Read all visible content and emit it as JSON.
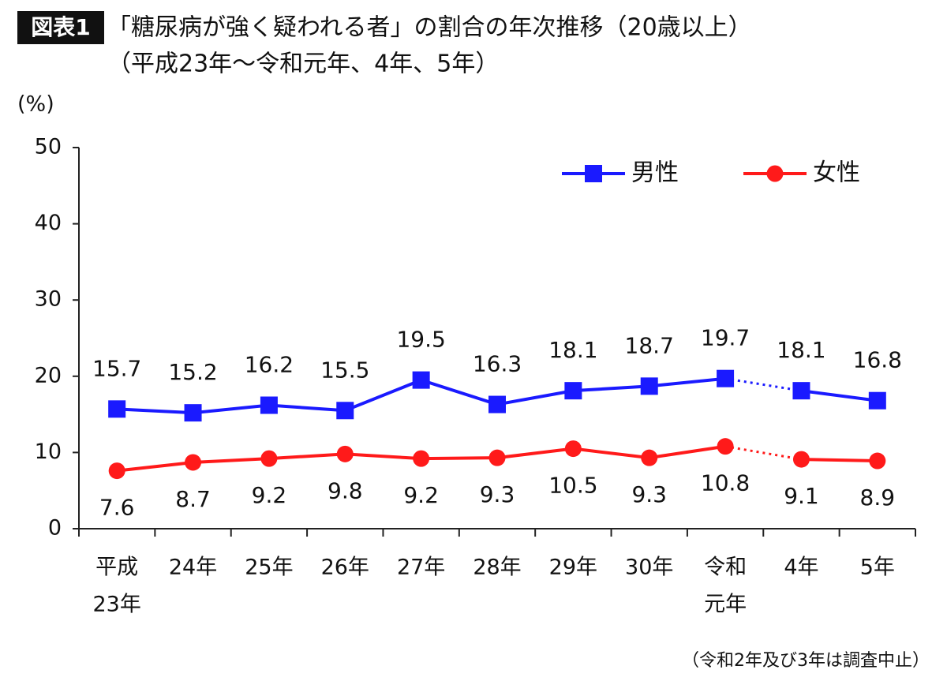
{
  "chart_data": {
    "type": "line",
    "badge": "図表1",
    "title": "「糖尿病が強く疑われる者」の割合の年次推移（20歳以上）",
    "subtitle": "（平成23年～令和元年、4年、5年）",
    "y_label": "(%)",
    "note": "（令和2年及び3年は調査中止）",
    "categories": [
      [
        "平成",
        "23年"
      ],
      [
        "24年"
      ],
      [
        "25年"
      ],
      [
        "26年"
      ],
      [
        "27年"
      ],
      [
        "28年"
      ],
      [
        "29年"
      ],
      [
        "30年"
      ],
      [
        "令和",
        "元年"
      ],
      [
        "4年"
      ],
      [
        "5年"
      ]
    ],
    "series": [
      {
        "name": "男性",
        "color": "#1a1aff",
        "marker": "square",
        "values": [
          15.7,
          15.2,
          16.2,
          15.5,
          19.5,
          16.3,
          18.1,
          18.7,
          19.7,
          18.1,
          16.8
        ]
      },
      {
        "name": "女性",
        "color": "#ff1a1a",
        "marker": "circle",
        "values": [
          7.6,
          8.7,
          9.2,
          9.8,
          9.2,
          9.3,
          10.5,
          9.3,
          10.8,
          9.1,
          8.9
        ]
      }
    ],
    "dotted_segment": [
      8,
      9
    ],
    "ylim": [
      0,
      50
    ],
    "yticks": [
      0,
      10,
      20,
      30,
      40,
      50
    ],
    "legend": "top-right"
  }
}
